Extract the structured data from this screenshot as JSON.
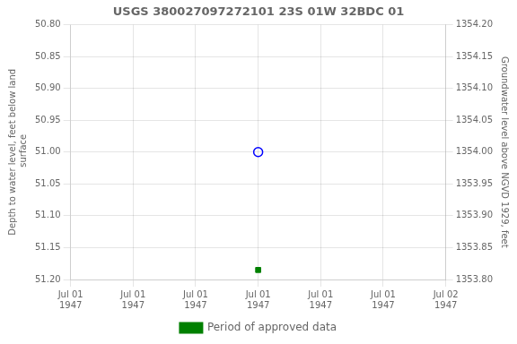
{
  "chart_data": {
    "type": "scatter",
    "title": "USGS 380027097272101 23S 01W 32BDC 01",
    "categories": [
      "Jul 01\n1947",
      "Jul 01\n1947",
      "Jul 01\n1947",
      "Jul 01\n1947",
      "Jul 01\n1947",
      "Jul 01\n1947",
      "Jul 02\n1947"
    ],
    "series": [
      {
        "color": "blue",
        "marker": "circle",
        "values": [
          null,
          null,
          null,
          51.0,
          null,
          null,
          null
        ]
      },
      {
        "name": "Period of approved data",
        "color": "#008000",
        "marker": "square",
        "values": [
          null,
          null,
          null,
          51.185,
          null,
          null,
          null
        ]
      }
    ],
    "ylabel": "Depth to water level, feet below land\n surface",
    "y2label": "Groundwater level above NGVD 1929, feet",
    "ylim": [
      51.2,
      50.8
    ],
    "yticks": [
      {
        "value": 50.8,
        "label": "50.80"
      },
      {
        "value": 50.85,
        "label": "50.85"
      },
      {
        "value": 50.9,
        "label": "50.90"
      },
      {
        "value": 50.95,
        "label": "50.95"
      },
      {
        "value": 51.0,
        "label": "51.00"
      },
      {
        "value": 51.05,
        "label": "51.05"
      },
      {
        "value": 51.1,
        "label": "51.10"
      },
      {
        "value": 51.15,
        "label": "51.15"
      },
      {
        "value": 51.2,
        "label": "51.20"
      }
    ],
    "y2lim": [
      1353.8,
      1354.2
    ],
    "y2ticks": [
      {
        "value": 1354.2,
        "label": "1354.20"
      },
      {
        "value": 1354.15,
        "label": "1354.15"
      },
      {
        "value": 1354.1,
        "label": "1354.10"
      },
      {
        "value": 1354.05,
        "label": "1354.05"
      },
      {
        "value": 1354.0,
        "label": "1354.00"
      },
      {
        "value": 1353.95,
        "label": "1353.95"
      },
      {
        "value": 1353.9,
        "label": "1353.90"
      },
      {
        "value": 1353.85,
        "label": "1353.85"
      },
      {
        "value": 1353.8,
        "label": "1353.80"
      }
    ],
    "grid": true,
    "legend": "bottom"
  }
}
